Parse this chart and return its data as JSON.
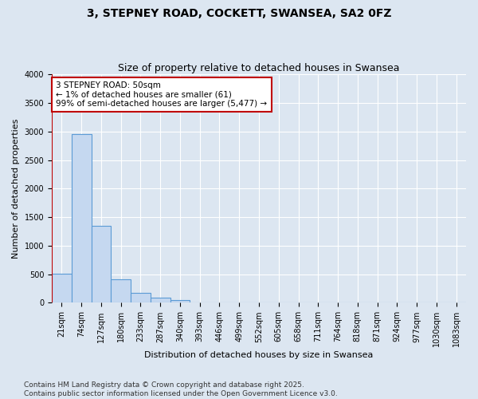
{
  "title": "3, STEPNEY ROAD, COCKETT, SWANSEA, SA2 0FZ",
  "subtitle": "Size of property relative to detached houses in Swansea",
  "xlabel": "Distribution of detached houses by size in Swansea",
  "ylabel": "Number of detached properties",
  "categories": [
    "21sqm",
    "74sqm",
    "127sqm",
    "180sqm",
    "233sqm",
    "287sqm",
    "340sqm",
    "393sqm",
    "446sqm",
    "499sqm",
    "552sqm",
    "605sqm",
    "658sqm",
    "711sqm",
    "764sqm",
    "818sqm",
    "871sqm",
    "924sqm",
    "977sqm",
    "1030sqm",
    "1083sqm"
  ],
  "values": [
    510,
    2960,
    1350,
    415,
    170,
    85,
    55,
    0,
    0,
    0,
    0,
    0,
    0,
    0,
    0,
    0,
    0,
    0,
    0,
    0,
    0
  ],
  "bar_color": "#c5d8f0",
  "bar_edge_color": "#5b9bd5",
  "vline_color": "#c00000",
  "annotation_text": "3 STEPNEY ROAD: 50sqm\n← 1% of detached houses are smaller (61)\n99% of semi-detached houses are larger (5,477) →",
  "annotation_box_color": "#ffffff",
  "annotation_box_edge_color": "#c00000",
  "ylim": [
    0,
    4000
  ],
  "yticks": [
    0,
    500,
    1000,
    1500,
    2000,
    2500,
    3000,
    3500,
    4000
  ],
  "grid_color": "#ffffff",
  "background_color": "#dce6f1",
  "footer_text": "Contains HM Land Registry data © Crown copyright and database right 2025.\nContains public sector information licensed under the Open Government Licence v3.0.",
  "title_fontsize": 10,
  "subtitle_fontsize": 9,
  "axis_label_fontsize": 8,
  "tick_fontsize": 7,
  "annotation_fontsize": 7.5,
  "footer_fontsize": 6.5
}
